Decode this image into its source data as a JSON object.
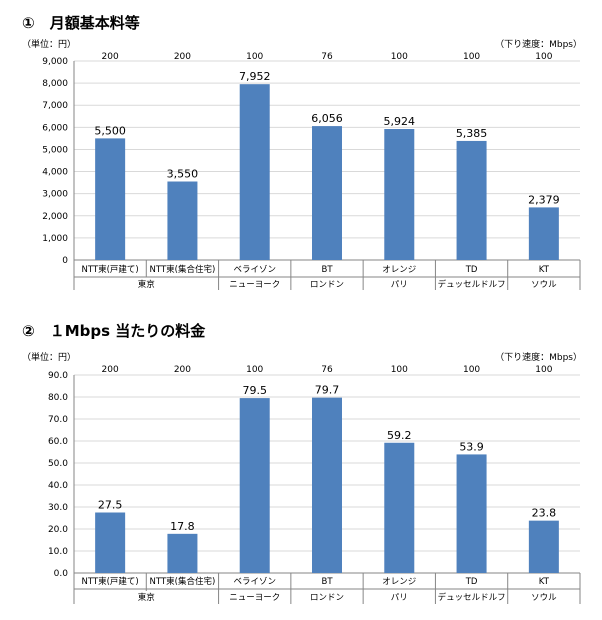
{
  "chart_data": [
    {
      "type": "bar",
      "title": "①　月額基本料等",
      "unit_label": "（単位：円）",
      "speed_label": "（下り速度：Mbps）",
      "speeds": [
        "200",
        "200",
        "100",
        "76",
        "100",
        "100",
        "100"
      ],
      "categories": [
        "NTT東(戸建て)",
        "NTT東(集合住宅)",
        "ベライゾン",
        "BT",
        "オレンジ",
        "TD",
        "KT"
      ],
      "cities": [
        "東京",
        "東京",
        "ニューヨーク",
        "ロンドン",
        "パリ",
        "デュッセルドルフ",
        "ソウル"
      ],
      "values": [
        5500,
        3550,
        7952,
        6056,
        5924,
        5385,
        2379
      ],
      "value_labels": [
        "5,500",
        "3,550",
        "7,952",
        "6,056",
        "5,924",
        "5,385",
        "2,379"
      ],
      "yticks": [
        "0",
        "1,000",
        "2,000",
        "3,000",
        "4,000",
        "5,000",
        "6,000",
        "7,000",
        "8,000",
        "9,000"
      ],
      "ylim": [
        0,
        9000
      ],
      "grid": true,
      "bar_color": "#4f81bd"
    },
    {
      "type": "bar",
      "title": "②　１Mbps 当たりの料金",
      "unit_label": "（単位：円）",
      "speed_label": "（下り速度：Mbps）",
      "speeds": [
        "200",
        "200",
        "100",
        "76",
        "100",
        "100",
        "100"
      ],
      "categories": [
        "NTT東(戸建て)",
        "NTT東(集合住宅)",
        "ベライゾン",
        "BT",
        "オレンジ",
        "TD",
        "KT"
      ],
      "cities": [
        "東京",
        "東京",
        "ニューヨーク",
        "ロンドン",
        "パリ",
        "デュッセルドルフ",
        "ソウル"
      ],
      "values": [
        27.5,
        17.8,
        79.5,
        79.7,
        59.2,
        53.9,
        23.8
      ],
      "value_labels": [
        "27.5",
        "17.8",
        "79.5",
        "79.7",
        "59.2",
        "53.9",
        "23.8"
      ],
      "yticks": [
        "0.0",
        "10.0",
        "20.0",
        "30.0",
        "40.0",
        "50.0",
        "60.0",
        "70.0",
        "80.0",
        "90.0"
      ],
      "ylim": [
        0,
        90
      ],
      "grid": true,
      "bar_color": "#4f81bd"
    }
  ]
}
